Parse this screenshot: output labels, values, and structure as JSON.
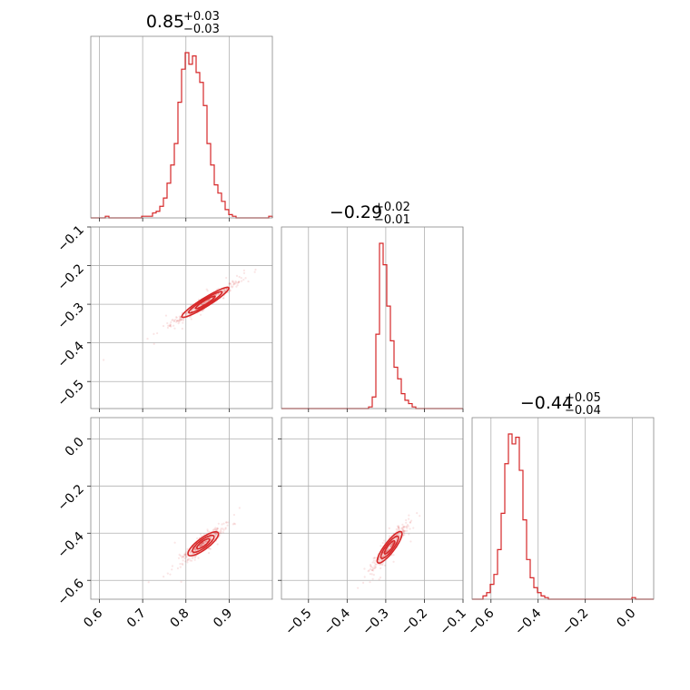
{
  "chart_data": {
    "type": "corner",
    "color": "#d62728",
    "grid": true,
    "params": [
      {
        "median": 0.85,
        "plus": 0.03,
        "minus": 0.03,
        "title_main": "0.85",
        "title_sup": "+0.03",
        "title_sub": "−0.03",
        "range": [
          0.58,
          1.0
        ],
        "ticks": [
          0.6,
          0.7,
          0.8,
          0.9
        ],
        "tick_labels": [
          "0.6",
          "0.7",
          "0.8",
          "0.9"
        ],
        "hist": {
          "start": 0.58,
          "width": 0.0084,
          "counts": [
            0.0,
            0.0,
            0.0,
            0.0,
            0.01,
            0.0,
            0.0,
            0.0,
            0.0,
            0.0,
            0.0,
            0.0,
            0.0,
            0.0,
            0.01,
            0.01,
            0.01,
            0.03,
            0.04,
            0.07,
            0.12,
            0.21,
            0.32,
            0.45,
            0.7,
            0.9,
            1.0,
            0.93,
            0.98,
            0.88,
            0.82,
            0.68,
            0.45,
            0.32,
            0.2,
            0.15,
            0.1,
            0.05,
            0.02,
            0.01,
            0.0,
            0.0,
            0.0,
            0.0,
            0.0,
            0.0,
            0.0,
            0.0,
            0.0,
            0.01
          ]
        }
      },
      {
        "median": -0.29,
        "plus": 0.02,
        "minus": 0.01,
        "title_main": "−0.29",
        "title_sup": "+0.02",
        "title_sub": "−0.01",
        "range": [
          -0.57,
          -0.1
        ],
        "ticks": [
          -0.5,
          -0.4,
          -0.3,
          -0.2,
          -0.1
        ],
        "tick_labels": [
          "−0.5",
          "−0.4",
          "−0.3",
          "−0.2",
          "−0.1"
        ],
        "hist": {
          "start": -0.57,
          "width": 0.0094,
          "counts": [
            0.0,
            0.0,
            0.0,
            0.0,
            0.0,
            0.0,
            0.0,
            0.0,
            0.0,
            0.0,
            0.0,
            0.0,
            0.0,
            0.0,
            0.0,
            0.0,
            0.0,
            0.0,
            0.0,
            0.0,
            0.0,
            0.0,
            0.0,
            0.0,
            0.01,
            0.07,
            0.45,
            1.0,
            0.87,
            0.62,
            0.41,
            0.25,
            0.18,
            0.09,
            0.05,
            0.03,
            0.01,
            0.0,
            0.0,
            0.0,
            0.0,
            0.0,
            0.0,
            0.0,
            0.0,
            0.0,
            0.0,
            0.0,
            0.0,
            0.0
          ]
        }
      },
      {
        "median": -0.44,
        "plus": 0.05,
        "minus": 0.04,
        "title_main": "−0.44",
        "title_sup": "+0.05",
        "title_sub": "−0.04",
        "range": [
          -0.68,
          0.09
        ],
        "ticks": [
          -0.6,
          -0.4,
          -0.2,
          0.0
        ],
        "tick_labels": [
          "−0.6",
          "−0.4",
          "−0.2",
          "0.0"
        ],
        "hist": {
          "start": -0.68,
          "width": 0.0154,
          "counts": [
            0.0,
            0.0,
            0.0,
            0.02,
            0.04,
            0.09,
            0.15,
            0.3,
            0.52,
            0.82,
            1.0,
            0.94,
            0.98,
            0.78,
            0.48,
            0.24,
            0.13,
            0.07,
            0.04,
            0.02,
            0.01,
            0.0,
            0.0,
            0.0,
            0.0,
            0.0,
            0.0,
            0.0,
            0.0,
            0.0,
            0.0,
            0.0,
            0.0,
            0.0,
            0.0,
            0.0,
            0.0,
            0.0,
            0.0,
            0.0,
            0.0,
            0.0,
            0.0,
            0.0,
            0.01,
            0.0,
            0.0,
            0.0,
            0.0,
            0.0
          ]
        }
      }
    ],
    "pairs": [
      {
        "x": 0,
        "y": 1,
        "slope": 0.7,
        "spread_major": 0.05,
        "spread_minor": 0.005,
        "center": [
          0.845,
          -0.295
        ]
      },
      {
        "x": 0,
        "y": 2,
        "slope": 1.55,
        "spread_major": 0.045,
        "spread_minor": 0.008,
        "center": [
          0.84,
          -0.445
        ]
      },
      {
        "x": 1,
        "y": 2,
        "slope": 2.3,
        "spread_major": 0.055,
        "spread_minor": 0.007,
        "center": [
          -0.29,
          -0.46
        ]
      }
    ]
  }
}
